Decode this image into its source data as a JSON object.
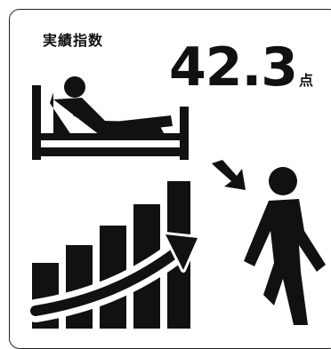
{
  "card": {
    "title": "実績指数",
    "score_value": "42.3",
    "score_unit": "点"
  },
  "colors": {
    "ink": "#111111",
    "border": "#222222",
    "background": "#ffffff"
  },
  "icons": {
    "patient": "patient-in-bed-icon",
    "arrow": "down-right-arrow-icon",
    "walker": "walking-person-icon",
    "chart": "rising-bar-chart-icon"
  }
}
